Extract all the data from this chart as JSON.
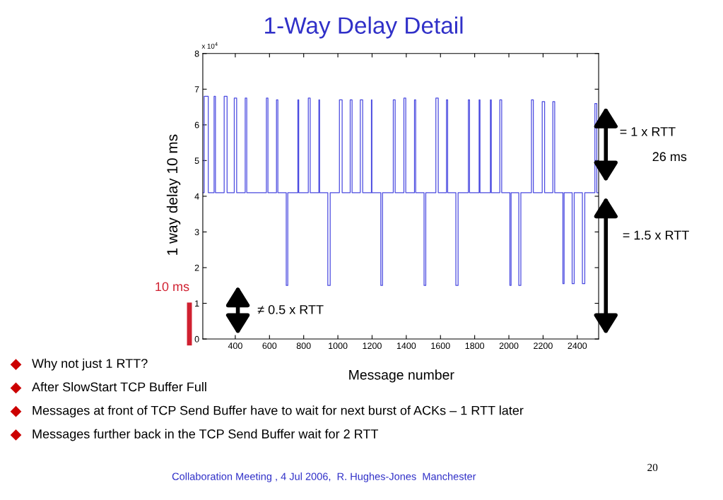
{
  "chart_data": {
    "type": "line",
    "title": "1-Way Delay Detail",
    "xlabel": "Message number",
    "ylabel": "1 way delay 10 ms",
    "xlim": [
      210,
      2525
    ],
    "xticks": [
      400,
      600,
      800,
      1000,
      1200,
      1400,
      1600,
      1800,
      2000,
      2200,
      2400
    ],
    "ylim": [
      0,
      8
    ],
    "yticks": [
      0,
      1,
      2,
      3,
      4,
      5,
      6,
      7,
      8
    ],
    "grid": false,
    "legend": false,
    "marker": "none",
    "line_style": "solid",
    "series": [
      {
        "color": "#4a4ae0",
        "x": [
          210,
          218,
          218,
          242,
          242,
          276,
          276,
          284,
          284,
          335,
          335,
          352,
          352,
          394,
          394,
          408,
          408,
          458,
          458,
          467,
          467,
          582,
          582,
          591,
          591,
          641,
          641,
          649,
          649,
          698,
          698,
          707,
          707,
          766,
          766,
          771,
          771,
          827,
          827,
          838,
          838,
          889,
          889,
          893,
          893,
          941,
          941,
          955,
          955,
          1009,
          1009,
          1025,
          1025,
          1072,
          1072,
          1083,
          1083,
          1131,
          1131,
          1145,
          1145,
          1196,
          1196,
          1199,
          1199,
          1251,
          1251,
          1261,
          1261,
          1324,
          1324,
          1335,
          1335,
          1386,
          1386,
          1397,
          1397,
          1448,
          1448,
          1455,
          1455,
          1504,
          1504,
          1514,
          1514,
          1573,
          1573,
          1587,
          1587,
          1635,
          1635,
          1642,
          1642,
          1690,
          1690,
          1703,
          1703,
          1763,
          1763,
          1770,
          1770,
          1826,
          1826,
          1831,
          1831,
          1892,
          1892,
          1897,
          1897,
          1947,
          1947,
          1958,
          1958,
          2006,
          2006,
          2013,
          2013,
          2058,
          2058,
          2070,
          2070,
          2132,
          2132,
          2143,
          2143,
          2195,
          2195,
          2209,
          2209,
          2257,
          2257,
          2268,
          2268,
          2316,
          2316,
          2323,
          2323,
          2370,
          2370,
          2382,
          2382,
          2430,
          2430,
          2444,
          2444,
          2503,
          2503,
          2514,
          2514,
          2525
        ],
        "values": [
          4.1,
          4.1,
          6.8,
          6.8,
          4.1,
          4.1,
          6.8,
          6.8,
          4.1,
          4.1,
          6.8,
          6.8,
          4.1,
          4.1,
          6.75,
          6.75,
          4.1,
          4.1,
          6.75,
          6.75,
          4.1,
          4.1,
          6.75,
          6.75,
          4.1,
          4.1,
          6.7,
          6.7,
          4.1,
          4.1,
          1.5,
          1.5,
          4.1,
          4.1,
          6.7,
          6.7,
          4.1,
          4.1,
          6.75,
          6.75,
          4.1,
          4.1,
          6.7,
          6.7,
          4.1,
          4.1,
          1.5,
          1.5,
          4.1,
          4.1,
          6.7,
          6.7,
          4.1,
          4.1,
          6.7,
          6.7,
          4.1,
          4.1,
          6.7,
          6.7,
          4.1,
          4.1,
          6.7,
          6.7,
          4.1,
          4.1,
          1.5,
          1.5,
          4.1,
          4.1,
          6.7,
          6.7,
          4.1,
          4.1,
          6.75,
          6.75,
          4.1,
          4.1,
          6.7,
          6.7,
          4.1,
          4.1,
          1.5,
          1.5,
          4.1,
          4.1,
          6.75,
          6.75,
          4.1,
          4.1,
          6.7,
          6.7,
          4.1,
          4.1,
          1.5,
          1.5,
          4.1,
          4.1,
          6.7,
          6.7,
          4.1,
          4.1,
          6.7,
          6.7,
          4.1,
          4.1,
          6.7,
          6.7,
          4.1,
          4.1,
          6.7,
          6.7,
          4.1,
          4.1,
          1.5,
          1.5,
          4.1,
          4.1,
          1.5,
          1.5,
          4.1,
          4.1,
          6.7,
          6.7,
          4.1,
          4.1,
          6.65,
          6.65,
          4.1,
          4.1,
          6.65,
          6.65,
          4.1,
          4.1,
          1.55,
          1.55,
          4.1,
          4.1,
          1.55,
          1.55,
          4.1,
          4.1,
          1.55,
          1.55,
          4.1,
          4.1,
          6.6,
          6.6,
          4.1,
          4.1
        ]
      }
    ],
    "annotations": [
      "x 10$^{4}$",
      "= 1 x RTT",
      "26 ms",
      "= 1.5 x RTT",
      "≠ 0.5 x RTT",
      "10 ms",
      "Why not just 1 RTT?",
      "After SlowStart TCP Buffer Full",
      "Messages at front of TCP Send Buffer have to wait for next burst of ACKs – 1 RTT later",
      "Messages further back in the TCP Send Buffer wait for 2 RTT",
      "Collaboration Meeting , 4 Jul 2006,  R. Hughes-Jones  Manchester",
      "20"
    ]
  }
}
